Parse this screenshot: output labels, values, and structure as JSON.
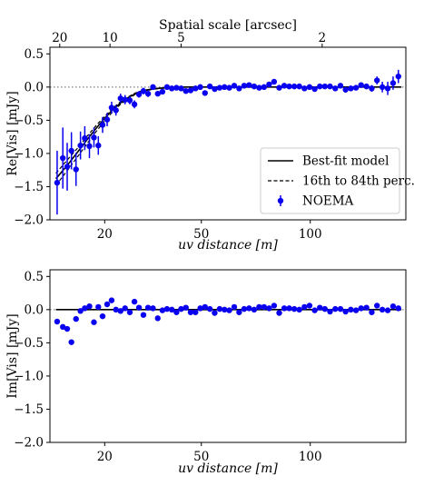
{
  "chart_data": [
    {
      "type": "scatter",
      "panel": "top",
      "xlabel": "uv distance [m]",
      "ylabel": "Re[Vis] [mJy]",
      "secondary_xlabel": "Spatial scale [arcsec]",
      "xscale": "sqrt",
      "xlim": [
        9,
        158
      ],
      "ylim": [
        -2.0,
        0.6
      ],
      "xticks": [
        20,
        50,
        100
      ],
      "xtick_labels": [
        "20",
        "50",
        "100"
      ],
      "yticks": [
        0.5,
        0.0,
        -0.5,
        -1.0,
        -1.5,
        -2.0
      ],
      "ytick_labels": [
        "0.5",
        "0.0",
        "−0.5",
        "−1.0",
        "−1.5",
        "−2.0"
      ],
      "secondary_xticks": [
        20,
        10,
        5,
        2
      ],
      "secondary_xtick_labels": [
        "20",
        "10",
        "5",
        "2"
      ],
      "reference_line": {
        "y": 0.0,
        "style": "dotted",
        "color": "#808080"
      },
      "legend": {
        "placement": "lower-right",
        "entries": [
          {
            "label": "Best-fit model",
            "style": "solid",
            "color": "#000000"
          },
          {
            "label": "16th to 84th perc.",
            "style": "dashed",
            "color": "#000000"
          },
          {
            "label": "NOEMA",
            "style": "errorbar-point",
            "color": "#0a00f0"
          }
        ]
      },
      "series": [
        {
          "name": "NOEMA",
          "color": "#0a00f0",
          "x": [
            10.2,
            11.2,
            12.0,
            12.8,
            13.7,
            14.6,
            15.5,
            16.5,
            17.5,
            18.5,
            19.5,
            20.6,
            21.7,
            22.8,
            24.0,
            25.2,
            26.5,
            27.8,
            29.1,
            30.4,
            31.8,
            33.3,
            34.8,
            36.3,
            37.8,
            39.4,
            41.0,
            42.6,
            44.3,
            46.0,
            47.8,
            49.6,
            51.4,
            53.3,
            55.2,
            57.2,
            59.2,
            61.2,
            63.3,
            65.4,
            67.6,
            69.8,
            72.1,
            74.4,
            76.7,
            79.1,
            81.5,
            84.0,
            86.5,
            89.0,
            91.6,
            94.2,
            96.9,
            99.6,
            102.4,
            105.2,
            108.0,
            110.9,
            113.9,
            116.9,
            119.9,
            123.0,
            126.1,
            129.2,
            132.5,
            135.8,
            139.1,
            142.5,
            146.0,
            149.5,
            153.0
          ],
          "y": [
            -1.44,
            -1.07,
            -1.2,
            -0.96,
            -1.24,
            -0.88,
            -0.77,
            -0.89,
            -0.76,
            -0.88,
            -0.57,
            -0.49,
            -0.31,
            -0.35,
            -0.17,
            -0.19,
            -0.2,
            -0.26,
            -0.11,
            -0.06,
            -0.1,
            0.0,
            -0.1,
            -0.07,
            0.0,
            -0.02,
            -0.01,
            -0.02,
            -0.06,
            -0.05,
            -0.02,
            0.0,
            -0.09,
            0.01,
            -0.03,
            -0.01,
            0.0,
            -0.01,
            0.02,
            -0.02,
            0.02,
            0.03,
            0.01,
            -0.01,
            0.0,
            0.04,
            0.08,
            -0.01,
            0.02,
            0.01,
            0.01,
            0.01,
            -0.02,
            0.0,
            -0.03,
            0.01,
            0.01,
            0.01,
            -0.02,
            0.02,
            -0.04,
            -0.02,
            -0.01,
            0.03,
            0.01,
            -0.02,
            0.1,
            0.0,
            -0.02,
            0.06,
            0.16
          ],
          "yerr": [
            0.48,
            0.46,
            0.36,
            0.28,
            0.25,
            0.21,
            0.18,
            0.18,
            0.15,
            0.14,
            0.12,
            0.1,
            0.09,
            0.08,
            0.07,
            0.07,
            0.06,
            0.06,
            0.05,
            0.05,
            0.05,
            0.04,
            0.04,
            0.04,
            0.04,
            0.04,
            0.04,
            0.04,
            0.04,
            0.04,
            0.04,
            0.04,
            0.04,
            0.04,
            0.04,
            0.04,
            0.04,
            0.04,
            0.04,
            0.04,
            0.04,
            0.04,
            0.04,
            0.04,
            0.04,
            0.04,
            0.04,
            0.04,
            0.04,
            0.04,
            0.04,
            0.04,
            0.04,
            0.04,
            0.04,
            0.04,
            0.04,
            0.04,
            0.04,
            0.04,
            0.04,
            0.04,
            0.04,
            0.04,
            0.04,
            0.05,
            0.06,
            0.08,
            0.1,
            0.1,
            0.1
          ]
        },
        {
          "name": "Best-fit model",
          "style": "solid",
          "x": [
            10,
            12,
            14,
            16,
            18,
            20,
            22,
            24,
            26,
            28,
            30,
            33,
            36,
            40,
            45,
            50,
            60,
            80,
            100,
            130,
            155
          ],
          "y": [
            -1.38,
            -1.18,
            -0.98,
            -0.79,
            -0.62,
            -0.47,
            -0.34,
            -0.24,
            -0.16,
            -0.1,
            -0.06,
            -0.03,
            -0.015,
            -0.005,
            0.0,
            0.0,
            0.0,
            0.0,
            0.0,
            0.0,
            0.0
          ]
        },
        {
          "name": "16th to 84th perc.",
          "style": "dashed",
          "x": [
            10,
            12,
            14,
            16,
            18,
            20,
            22,
            24,
            26,
            28,
            30,
            33,
            36,
            40,
            45,
            50,
            60,
            80,
            100,
            130,
            155
          ],
          "y": [
            -1.48,
            -1.26,
            -1.05,
            -0.85,
            -0.67,
            -0.51,
            -0.37,
            -0.26,
            -0.18,
            -0.11,
            -0.07,
            -0.035,
            -0.02,
            -0.006,
            0.0,
            0.0,
            0.0,
            0.0,
            0.0,
            0.0,
            0.0
          ]
        },
        {
          "name": "16th to 84th perc.",
          "style": "dashed",
          "x": [
            10,
            12,
            14,
            16,
            18,
            20,
            22,
            24,
            26,
            28,
            30,
            33,
            36,
            40,
            45,
            50,
            60,
            80,
            100,
            130,
            155
          ],
          "y": [
            -1.3,
            -1.1,
            -0.92,
            -0.74,
            -0.58,
            -0.44,
            -0.32,
            -0.22,
            -0.15,
            -0.09,
            -0.055,
            -0.025,
            -0.012,
            -0.004,
            0.0,
            0.0,
            0.0,
            0.0,
            0.0,
            0.0,
            0.0
          ]
        }
      ]
    },
    {
      "type": "scatter",
      "panel": "bottom",
      "xlabel": "uv distance [m]",
      "ylabel": "Im[Vis] [mJy]",
      "xscale": "sqrt",
      "xlim": [
        9,
        158
      ],
      "ylim": [
        -2.0,
        0.6
      ],
      "xticks": [
        20,
        50,
        100
      ],
      "xtick_labels": [
        "20",
        "50",
        "100"
      ],
      "yticks": [
        0.5,
        0.0,
        -0.5,
        -1.0,
        -1.5,
        -2.0
      ],
      "ytick_labels": [
        "0.5",
        "0.0",
        "−0.5",
        "−1.0",
        "−1.5",
        "−2.0"
      ],
      "reference_line": {
        "y": 0.0,
        "style": "dotted",
        "color": "#808080"
      },
      "series": [
        {
          "name": "NOEMA",
          "color": "#0a00f0",
          "x": [
            10.2,
            11.2,
            12.0,
            12.8,
            13.7,
            14.6,
            15.5,
            16.5,
            17.5,
            18.5,
            19.5,
            20.6,
            21.7,
            22.8,
            24.0,
            25.2,
            26.5,
            27.8,
            29.1,
            30.4,
            31.8,
            33.3,
            34.8,
            36.3,
            37.8,
            39.4,
            41.0,
            42.6,
            44.3,
            46.0,
            47.8,
            49.6,
            51.4,
            53.3,
            55.2,
            57.2,
            59.2,
            61.2,
            63.3,
            65.4,
            67.6,
            69.8,
            72.1,
            74.4,
            76.7,
            79.1,
            81.5,
            84.0,
            86.5,
            89.0,
            91.6,
            94.2,
            96.9,
            99.6,
            102.4,
            105.2,
            108.0,
            110.9,
            113.9,
            116.9,
            119.9,
            123.0,
            126.1,
            129.2,
            132.5,
            135.8,
            139.1,
            142.5,
            146.0,
            149.5,
            153.0
          ],
          "y": [
            -0.18,
            -0.26,
            -0.29,
            -0.49,
            -0.14,
            -0.02,
            0.02,
            0.05,
            -0.19,
            0.04,
            -0.1,
            0.08,
            0.14,
            0.0,
            -0.02,
            0.02,
            -0.04,
            0.12,
            0.03,
            -0.08,
            0.03,
            0.02,
            -0.13,
            -0.01,
            0.01,
            0.0,
            -0.04,
            0.01,
            0.03,
            -0.04,
            -0.04,
            0.02,
            0.04,
            0.01,
            -0.05,
            0.01,
            0.0,
            -0.01,
            0.04,
            -0.04,
            0.01,
            0.02,
            0.0,
            0.04,
            0.04,
            0.02,
            0.06,
            -0.05,
            0.02,
            0.02,
            0.01,
            0.0,
            0.04,
            0.06,
            -0.01,
            0.03,
            0.01,
            -0.03,
            0.01,
            0.01,
            -0.03,
            0.0,
            -0.01,
            0.02,
            0.03,
            -0.04,
            0.06,
            0.0,
            -0.01,
            0.05,
            0.02
          ]
        },
        {
          "name": "Best-fit model",
          "style": "solid",
          "x": [
            10,
            155
          ],
          "y": [
            0.0,
            0.0
          ]
        }
      ]
    }
  ]
}
